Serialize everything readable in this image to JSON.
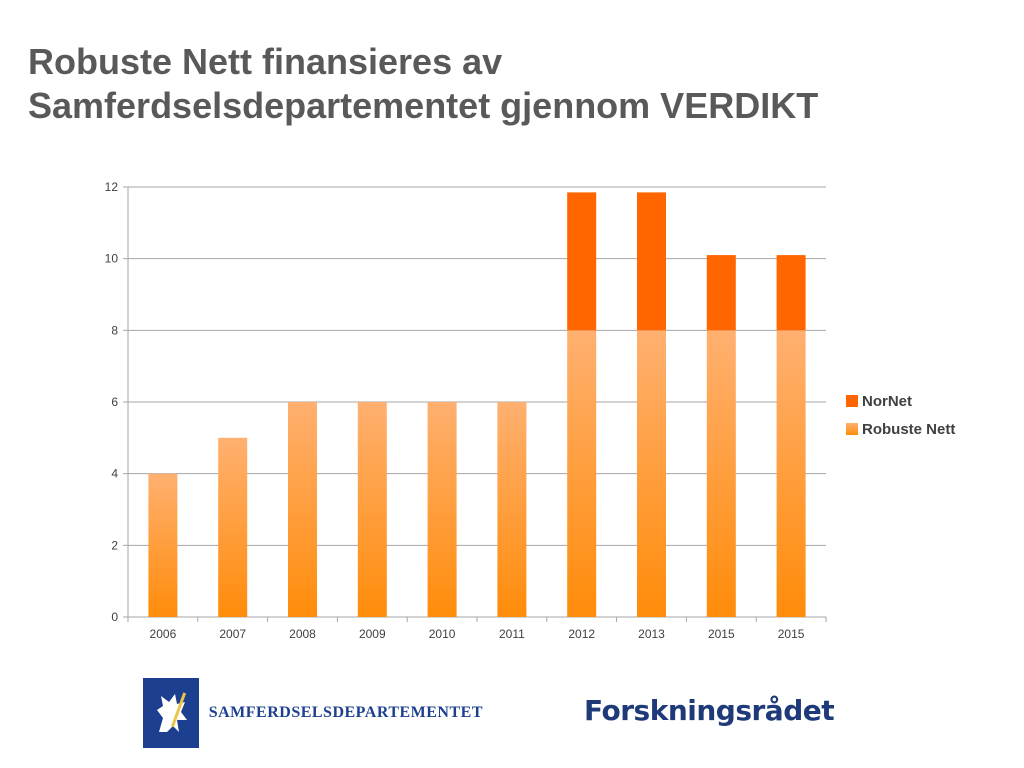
{
  "title": {
    "line1": "Robuste Nett finansieres av",
    "line2": "Samferdselsdepartementet gjennom VERDIKT"
  },
  "chart_data": {
    "type": "bar",
    "stacked": true,
    "categories": [
      "2006",
      "2007",
      "2008",
      "2009",
      "2010",
      "2011",
      "2012",
      "2013",
      "2015",
      "2015"
    ],
    "series": [
      {
        "name": "Robuste Nett",
        "values": [
          4,
          5,
          6,
          6,
          6,
          6,
          8,
          8,
          8,
          8
        ],
        "color": "#ff9a2e"
      },
      {
        "name": "NorNet",
        "values": [
          0,
          0,
          0,
          0,
          0,
          0,
          3.85,
          3.85,
          2.1,
          2.1
        ],
        "color": "#ff6600"
      }
    ],
    "ylim": [
      0,
      12
    ],
    "yticks": [
      0,
      2,
      4,
      6,
      8,
      10,
      12
    ],
    "grid": true,
    "legend": "right"
  },
  "logos": {
    "ministry": {
      "name": "SAMFERDSELSDEPARTEMENTET",
      "icon": "lion-crest-icon",
      "color": "#1c3f8f"
    },
    "council": {
      "name": "Forskningsrådet",
      "icon": "hourglass-logo-icon",
      "color": "#1f3a78"
    }
  }
}
